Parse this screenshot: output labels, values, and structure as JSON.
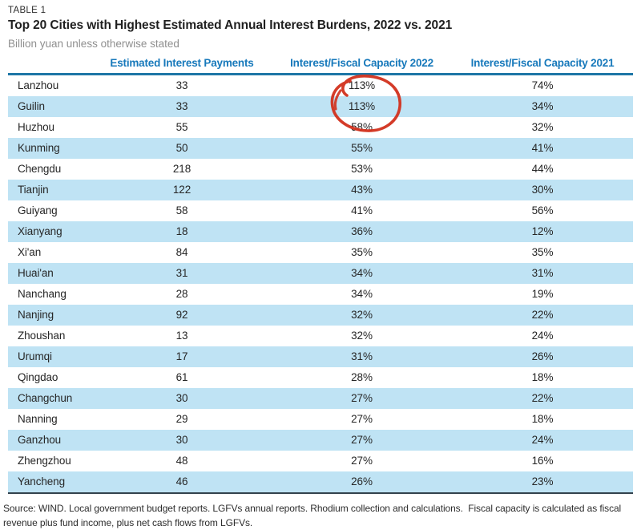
{
  "chart_data": {
    "type": "table",
    "table_label": "TABLE 1",
    "title": "Top 20 Cities with Highest Estimated Annual Interest Burdens, 2022 vs. 2021",
    "subtitle": "Billion yuan unless otherwise stated",
    "columns": [
      "",
      "Estimated Interest Payments",
      "Interest/Fiscal Capacity 2022",
      "Interest/Fiscal Capacity 2021"
    ],
    "rows": [
      [
        "Lanzhou",
        "33",
        "113%",
        "74%"
      ],
      [
        "Guilin",
        "33",
        "113%",
        "34%"
      ],
      [
        "Huzhou",
        "55",
        "58%",
        "32%"
      ],
      [
        "Kunming",
        "50",
        "55%",
        "41%"
      ],
      [
        "Chengdu",
        "218",
        "53%",
        "44%"
      ],
      [
        "Tianjin",
        "122",
        "43%",
        "30%"
      ],
      [
        "Guiyang",
        "58",
        "41%",
        "56%"
      ],
      [
        "Xianyang",
        "18",
        "36%",
        "12%"
      ],
      [
        "Xi'an",
        "84",
        "35%",
        "35%"
      ],
      [
        "Huai'an",
        "31",
        "34%",
        "31%"
      ],
      [
        "Nanchang",
        "28",
        "34%",
        "19%"
      ],
      [
        "Nanjing",
        "92",
        "32%",
        "22%"
      ],
      [
        "Zhoushan",
        "13",
        "32%",
        "24%"
      ],
      [
        "Urumqi",
        "17",
        "31%",
        "26%"
      ],
      [
        "Qingdao",
        "61",
        "28%",
        "18%"
      ],
      [
        "Changchun",
        "30",
        "27%",
        "22%"
      ],
      [
        "Nanning",
        "29",
        "27%",
        "18%"
      ],
      [
        "Ganzhou",
        "30",
        "27%",
        "24%"
      ],
      [
        "Zhengzhou",
        "48",
        "27%",
        "16%"
      ],
      [
        "Yancheng",
        "46",
        "26%",
        "23%"
      ]
    ],
    "source": "Source: WIND. Local government budget reports. LGFVs annual reports. Rhodium collection and calculations.  Fiscal capacity is calculated as fiscal revenue plus fund income, plus net cash flows from LGFVs.",
    "layout": {
      "stripe_pattern": "even rows shaded light blue",
      "grid": "off",
      "column_alignment": [
        "left",
        "center",
        "center",
        "center"
      ]
    }
  },
  "annotation": {
    "shape": "hand-drawn-red-circle",
    "color": "#d2301c",
    "highlights": "113% Interest/Fiscal Capacity 2022 values for Lanzhou and Guilin"
  },
  "colors": {
    "header_text": "#1779bb",
    "header_rule": "#1d76a6",
    "row_stripe": "#bfe3f4",
    "bottom_rule": "#33424d",
    "title_text": "#1f1f1f",
    "subtitle_text": "#8f8f8f",
    "body_text": "#262626"
  }
}
